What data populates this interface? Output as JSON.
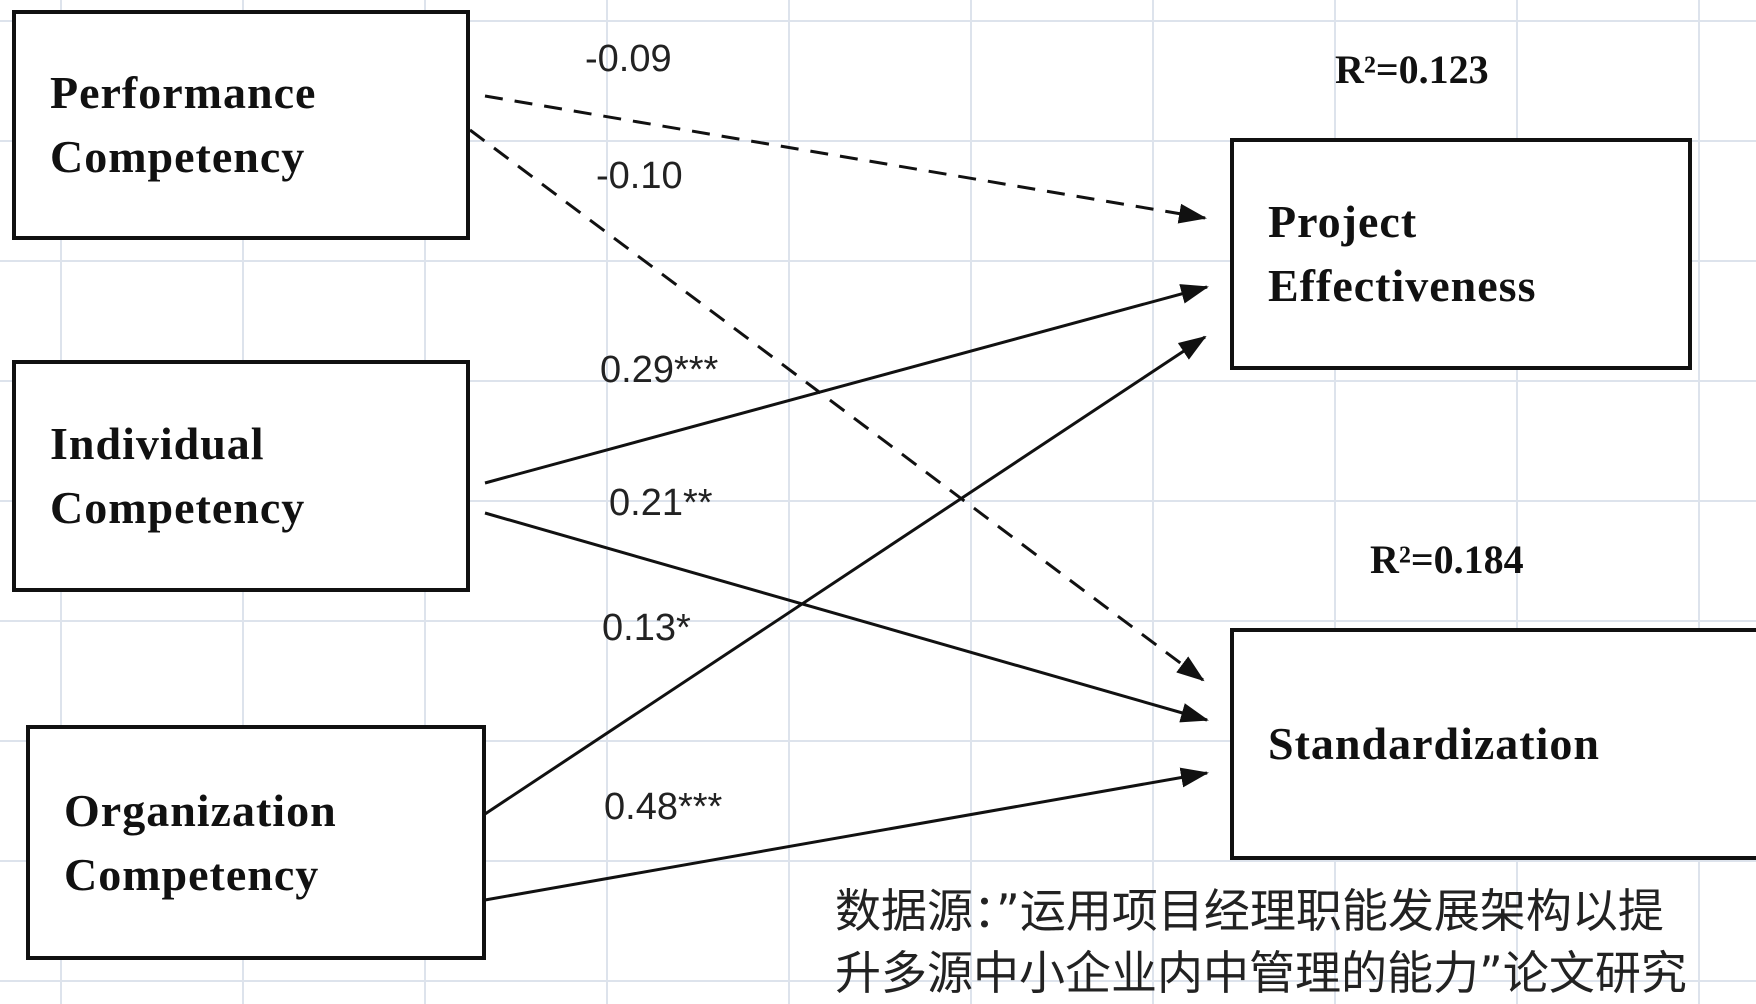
{
  "nodes": {
    "performance": [
      "Performance",
      "Competency"
    ],
    "individual": [
      "Individual",
      "Competency"
    ],
    "organization": [
      "Organization",
      "Competency"
    ],
    "project_effectiveness": [
      "Project",
      "Effectiveness"
    ],
    "standardization": [
      "Standardization"
    ]
  },
  "paths": [
    {
      "from": "performance",
      "to": "project_effectiveness",
      "coefficient": "-0.09",
      "style": "dashed"
    },
    {
      "from": "performance",
      "to": "standardization",
      "coefficient": "-0.10",
      "style": "dashed"
    },
    {
      "from": "individual",
      "to": "project_effectiveness",
      "coefficient": "0.29***",
      "style": "solid"
    },
    {
      "from": "individual",
      "to": "standardization",
      "coefficient": "0.21**",
      "style": "solid"
    },
    {
      "from": "organization",
      "to": "project_effectiveness",
      "coefficient": "0.13*",
      "style": "solid"
    },
    {
      "from": "organization",
      "to": "standardization",
      "coefficient": "0.48***",
      "style": "solid"
    }
  ],
  "r_squared": {
    "project_effectiveness": "R²=0.123",
    "standardization": "R²=0.184"
  },
  "caption": "数据源：”运用项目经理职能发展架构以提\n升多源中小企业内中管理的能力”论文研究"
}
